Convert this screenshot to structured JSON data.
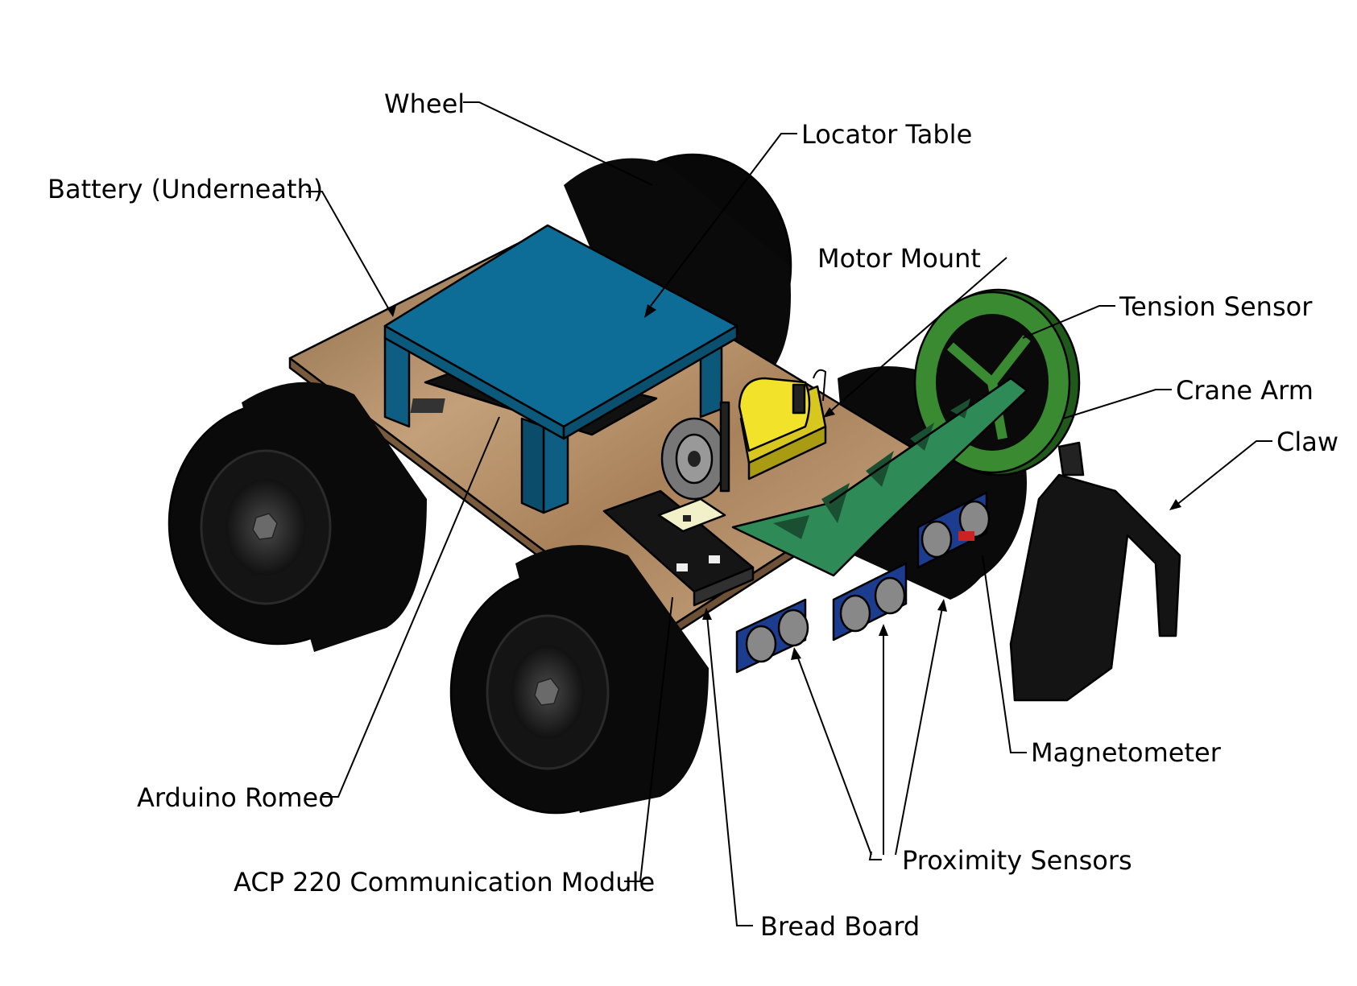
{
  "labels": {
    "wheel": "Wheel",
    "locator_table": "Locator Table",
    "battery": "Battery (Underneath)",
    "motor_mount": "Motor Mount",
    "tension_sensor": "Tension Sensor",
    "crane_arm": "Crane Arm",
    "claw": "Claw",
    "magnetometer": "Magnetometer",
    "arduino_romeo": "Arduino Romeo",
    "proximity_sensors": "Proximity Sensors",
    "acp_module": "ACP 220 Communication Module",
    "bread_board": "Bread Board"
  },
  "colors": {
    "wheel": "#0a0a0a",
    "base_plate": "#b58d64",
    "locator_table": "#0e6d96",
    "motor": "#f2e22a",
    "crane_arm": "#2e8b57",
    "tension_wheel": "#3a8a32",
    "sensor_board": "#1c3d8f",
    "bread_board": "#f1f0c8",
    "claw": "#141414"
  }
}
